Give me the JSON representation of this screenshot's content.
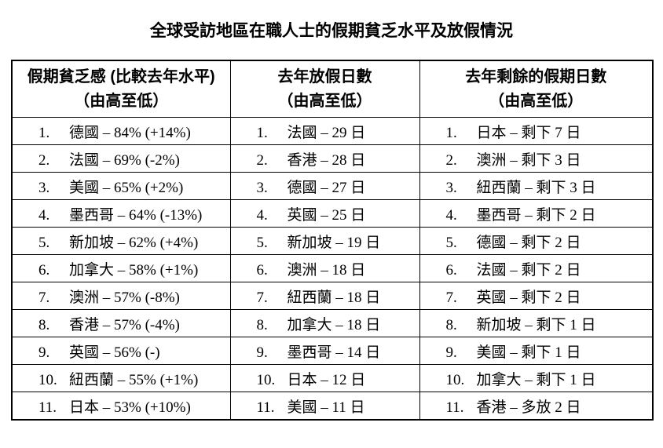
{
  "page": {
    "title": "全球受訪地區在職人士的假期貧乏水平及放假情況"
  },
  "table": {
    "columns": [
      {
        "header_line1": "假期貧乏感 (比較去年水平)",
        "header_line2": "（由高至低）",
        "rows": [
          {
            "num": "1.",
            "text": "德國 – 84% (+14%)"
          },
          {
            "num": "2.",
            "text": "法國 – 69% (-2%)"
          },
          {
            "num": "3.",
            "text": "美國 – 65% (+2%)"
          },
          {
            "num": "4.",
            "text": "墨西哥 – 64% (-13%)"
          },
          {
            "num": "5.",
            "text": "新加坡 – 62% (+4%)"
          },
          {
            "num": "6.",
            "text": "加拿大 – 58% (+1%)"
          },
          {
            "num": "7.",
            "text": "澳洲 – 57% (-8%)"
          },
          {
            "num": "8.",
            "text": "香港 – 57% (-4%)"
          },
          {
            "num": "9.",
            "text": "英國 – 56% (-)"
          },
          {
            "num": "10.",
            "text": "紐西蘭 – 55% (+1%)"
          },
          {
            "num": "11.",
            "text": "日本 – 53% (+10%)"
          }
        ]
      },
      {
        "header_line1": "去年放假日數",
        "header_line2": "（由高至低）",
        "rows": [
          {
            "num": "1.",
            "text": "法國 – 29 日"
          },
          {
            "num": "2.",
            "text": "香港 – 28 日"
          },
          {
            "num": "3.",
            "text": "德國 – 27 日"
          },
          {
            "num": "4.",
            "text": "英國 – 25 日"
          },
          {
            "num": "5.",
            "text": "新加坡 – 19 日"
          },
          {
            "num": "6.",
            "text": "澳洲 – 18 日"
          },
          {
            "num": "7.",
            "text": "紐西蘭 – 18 日"
          },
          {
            "num": "8.",
            "text": "加拿大 – 18 日"
          },
          {
            "num": "9.",
            "text": "墨西哥 – 14 日"
          },
          {
            "num": "10.",
            "text": "日本 – 12 日"
          },
          {
            "num": "11.",
            "text": "美國 – 11 日"
          }
        ]
      },
      {
        "header_line1": "去年剩餘的假期日數",
        "header_line2": "（由高至低）",
        "rows": [
          {
            "num": "1.",
            "text": "日本 – 剩下 7 日"
          },
          {
            "num": "2.",
            "text": "澳洲 – 剩下 3 日"
          },
          {
            "num": "3.",
            "text": "紐西蘭 – 剩下 3 日"
          },
          {
            "num": "4.",
            "text": "墨西哥 – 剩下 2 日"
          },
          {
            "num": "5.",
            "text": "德國 – 剩下 2 日"
          },
          {
            "num": "6.",
            "text": "法國 – 剩下 2 日"
          },
          {
            "num": "7.",
            "text": "英國 – 剩下 2 日"
          },
          {
            "num": "8.",
            "text": "新加坡 – 剩下 1 日"
          },
          {
            "num": "9.",
            "text": "美國 – 剩下 1 日"
          },
          {
            "num": "10.",
            "text": "加拿大 – 剩下 1 日"
          },
          {
            "num": "11.",
            "text": "香港 – 多放 2 日"
          }
        ]
      }
    ]
  }
}
